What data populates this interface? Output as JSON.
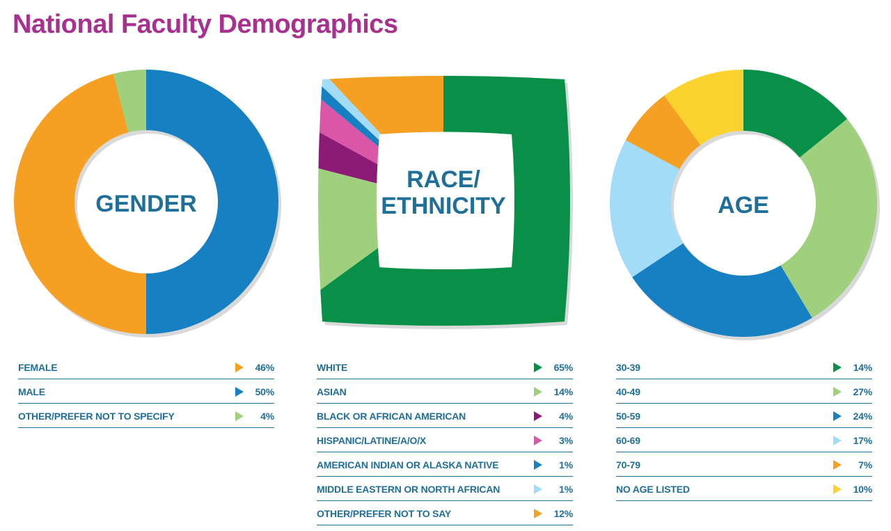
{
  "title": "National Faculty Demographics",
  "chart_data": [
    {
      "type": "pie",
      "title": "GENDER",
      "center_label": [
        "GENDER"
      ],
      "slices": [
        {
          "label": "FEMALE",
          "value": 46,
          "color": "#f6a023"
        },
        {
          "label": "MALE",
          "value": 50,
          "color": "#1780c2"
        },
        {
          "label": "OTHER/PREFER NOT TO SPECIFY",
          "value": 4,
          "color": "#9fd07d"
        }
      ],
      "legend": "below"
    },
    {
      "type": "pie",
      "title": "RACE/ETHNICITY",
      "center_label": [
        "RACE/",
        "ETHNICITY"
      ],
      "slices": [
        {
          "label": "WHITE",
          "value": 65,
          "color": "#089048"
        },
        {
          "label": "ASIAN",
          "value": 14,
          "color": "#9fd07d"
        },
        {
          "label": "BLACK OR AFRICAN AMERICAN",
          "value": 4,
          "color": "#8c1a77"
        },
        {
          "label": "HISPANIC/LATINE/A/O/X",
          "value": 3,
          "color": "#d957a6"
        },
        {
          "label": "AMERICAN INDIAN OR ALASKA NATIVE",
          "value": 1,
          "color": "#1780c2"
        },
        {
          "label": "MIDDLE EASTERN OR NORTH AFRICAN",
          "value": 1,
          "color": "#a3dcf6"
        },
        {
          "label": "OTHER/PREFER NOT TO SAY",
          "value": 12,
          "color": "#f6a023"
        }
      ],
      "legend": "below"
    },
    {
      "type": "pie",
      "title": "AGE",
      "center_label": [
        "AGE"
      ],
      "slices": [
        {
          "label": "30-39",
          "value": 14,
          "color": "#089048"
        },
        {
          "label": "40-49",
          "value": 27,
          "color": "#9fd07d"
        },
        {
          "label": "50-59",
          "value": 24,
          "color": "#1780c2"
        },
        {
          "label": "60-69",
          "value": 17,
          "color": "#a3dcf6"
        },
        {
          "label": "70-79",
          "value": 7,
          "color": "#f6a023"
        },
        {
          "label": "NO AGE LISTED",
          "value": 10,
          "color": "#fcd32e"
        }
      ],
      "legend": "below"
    }
  ]
}
